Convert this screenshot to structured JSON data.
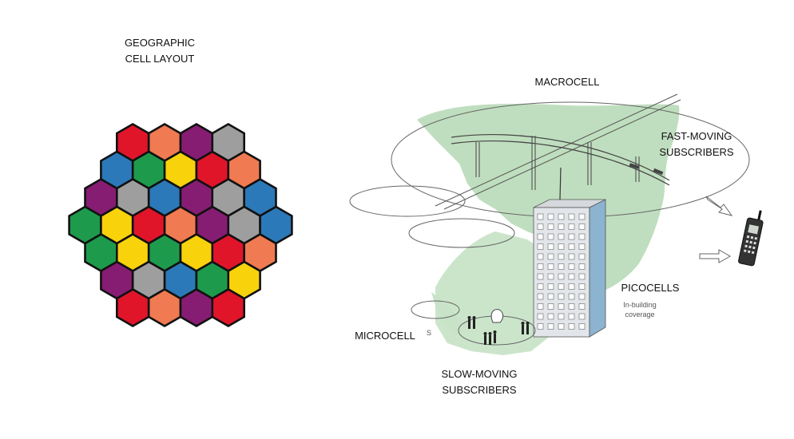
{
  "left_panel": {
    "title_line1": "GEOGRAPHIC",
    "title_line2": "CELL LAYOUT"
  },
  "right_panel": {
    "macrocell": "MACROCELL",
    "fast_line1": "FAST-MOVING",
    "fast_line2": "SUBSCRIBERS",
    "picocells": "PICOCELLS",
    "inbuilding_line1": "In-building",
    "inbuilding_line2": "coverage",
    "microcell": "MICROCELL",
    "slow_line1": "SLOW-MOVING",
    "slow_line2": "SUBSCRIBERS",
    "s_mark": "S"
  },
  "colors": {
    "red": "#e0152a",
    "orange": "#f07a52",
    "purple": "#861d73",
    "gray": "#9e9e9e",
    "blue": "#2c79b9",
    "green": "#1e9a4c",
    "yellow": "#f8d20b",
    "land": "#a9d3a9"
  },
  "hex_cells": [
    [
      "red",
      "orange",
      "purple",
      "gray",
      "blue",
      "green",
      "yellow",
      "red",
      "orange",
      "purple",
      "gray",
      "blue"
    ],
    [
      "purple",
      "gray",
      "blue",
      "green",
      "yellow",
      "red",
      "orange",
      "purple",
      "gray",
      "blue",
      "green",
      "yellow"
    ],
    [
      "green",
      "yellow",
      "red",
      "orange",
      "purple",
      "gray",
      "blue",
      "green",
      "yellow",
      "red",
      "orange",
      "purple"
    ]
  ]
}
